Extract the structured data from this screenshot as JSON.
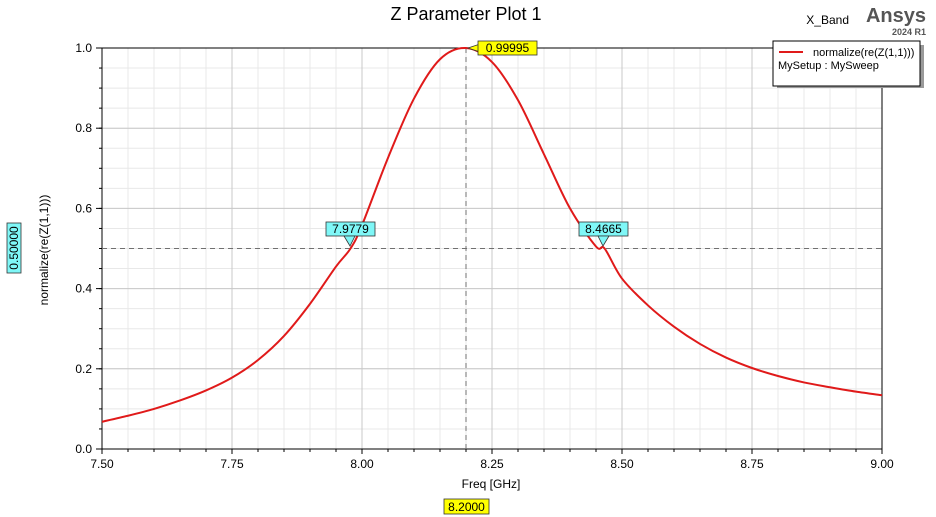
{
  "header": {
    "design_name": "X_Band",
    "brand": "Ansys",
    "version": "2024 R1"
  },
  "legend": {
    "setup": "MySetup : MySweep"
  },
  "colors": {
    "trace": "#e01a1a",
    "marker_peak": "#ffff00",
    "marker_x": "#7ff7f7",
    "grid_major": "#c8c8c8",
    "grid_minor": "#e8e8e8"
  },
  "markers": {
    "peak_value": "0.99995",
    "left_x": "7.9779",
    "right_x": "8.4665",
    "y_readout": "0.50000",
    "x_readout": "8.2000"
  },
  "chart_data": {
    "type": "line",
    "title": "Z Parameter Plot 1",
    "xlabel": "Freq [GHz]",
    "ylabel": "normalize(re(Z(1,1)))",
    "xlim": [
      7.5,
      9.0
    ],
    "ylim": [
      0.0,
      1.0
    ],
    "grid": true,
    "legend_position": "top-right",
    "x_ticks": [
      "7.50",
      "7.75",
      "8.00",
      "8.25",
      "8.50",
      "8.75",
      "9.00"
    ],
    "y_ticks": [
      "0.0",
      "0.2",
      "0.4",
      "0.6",
      "0.8",
      "1.0"
    ],
    "series": [
      {
        "name": "normalize(re(Z(1,1)))",
        "x": [
          7.5,
          7.55,
          7.6,
          7.65,
          7.7,
          7.75,
          7.8,
          7.85,
          7.9,
          7.95,
          7.9779,
          8.0,
          8.05,
          8.1,
          8.15,
          8.2,
          8.25,
          8.3,
          8.35,
          8.4,
          8.45,
          8.4665,
          8.5,
          8.55,
          8.6,
          8.65,
          8.7,
          8.75,
          8.8,
          8.85,
          8.9,
          8.95,
          9.0
        ],
        "y": [
          0.068,
          0.083,
          0.1,
          0.121,
          0.146,
          0.178,
          0.222,
          0.282,
          0.362,
          0.455,
          0.5,
          0.558,
          0.726,
          0.874,
          0.972,
          0.99995,
          0.965,
          0.87,
          0.735,
          0.6,
          0.505,
          0.5,
          0.425,
          0.358,
          0.305,
          0.262,
          0.228,
          0.202,
          0.182,
          0.166,
          0.154,
          0.143,
          0.134
        ]
      }
    ],
    "annotations": [
      {
        "type": "peak",
        "x": 8.2,
        "y": 0.99995,
        "label": "0.99995"
      },
      {
        "type": "x-marker",
        "x": 7.9779,
        "y": 0.5,
        "label": "7.9779"
      },
      {
        "type": "x-marker",
        "x": 8.4665,
        "y": 0.5,
        "label": "8.4665"
      },
      {
        "type": "hline",
        "y": 0.5
      },
      {
        "type": "vline",
        "x": 8.2
      }
    ]
  }
}
